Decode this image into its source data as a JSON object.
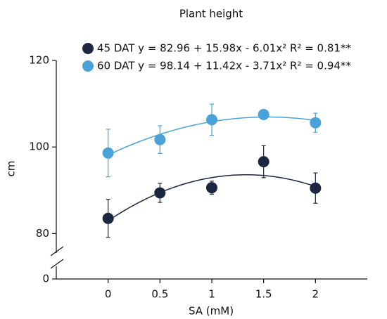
{
  "chart_data": {
    "type": "scatter",
    "title": "Plant height",
    "xlabel": "SA (mM)",
    "ylabel": "cm",
    "x": [
      0,
      0.5,
      1,
      1.5,
      2
    ],
    "xlim": [
      -0.5,
      2.5
    ],
    "xticks": [
      0,
      0.5,
      1,
      1.5,
      2
    ],
    "ylim": [
      0,
      120
    ],
    "yticks": [
      0,
      80,
      100,
      120
    ],
    "ybreak": [
      0,
      76
    ],
    "series": [
      {
        "name": "45 DAT y = 82.96 + 15.98x - 6.01x² R² = 0.81**",
        "color": "#1b2640",
        "values": [
          83.5,
          89.4,
          90.6,
          96.6,
          90.5
        ],
        "errors": [
          4.4,
          2.2,
          1.5,
          3.7,
          3.5
        ],
        "fit": [
          82.96,
          15.98,
          -6.01
        ]
      },
      {
        "name": "60 DAT y = 98.14 + 11.42x - 3.71x² R² = 0.94**",
        "color": "#4aa2d8",
        "values": [
          98.6,
          101.7,
          106.3,
          107.5,
          105.6
        ],
        "errors": [
          5.5,
          3.2,
          3.6,
          0.5,
          2.2
        ],
        "fit": [
          98.14,
          11.42,
          -3.71
        ]
      }
    ]
  }
}
